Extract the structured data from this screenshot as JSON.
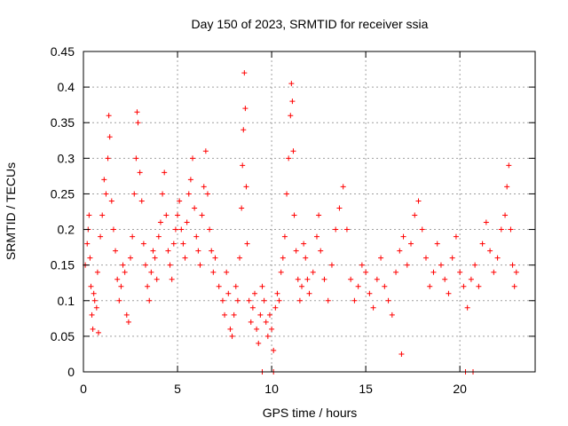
{
  "chart_data": {
    "type": "scatter",
    "title": "Day 150 of 2023, SRMTID for receiver ssia",
    "xlabel": "GPS time / hours",
    "ylabel": "SRMTID / TECUs",
    "xlim": [
      0,
      24
    ],
    "ylim": [
      0,
      0.45
    ],
    "xticks": [
      0,
      5,
      10,
      15,
      20
    ],
    "xtick_labels": [
      "0",
      "5",
      "10",
      "15",
      "20"
    ],
    "yticks": [
      0,
      0.05,
      0.1,
      0.15,
      0.2,
      0.25,
      0.3,
      0.35,
      0.4,
      0.45
    ],
    "ytick_labels": [
      "0",
      "0.05",
      "0.1",
      "0.15",
      "0.2",
      "0.25",
      "0.3",
      "0.35",
      "0.4",
      "0.45"
    ],
    "grid": true,
    "marker": "+",
    "color": "#ff0000",
    "series": [
      {
        "name": "SRMTID",
        "points": [
          [
            0.1,
            0.15
          ],
          [
            0.2,
            0.18
          ],
          [
            0.25,
            0.2
          ],
          [
            0.3,
            0.22
          ],
          [
            0.35,
            0.16
          ],
          [
            0.4,
            0.12
          ],
          [
            0.45,
            0.08
          ],
          [
            0.5,
            0.06
          ],
          [
            0.55,
            0.11
          ],
          [
            0.6,
            0.1
          ],
          [
            0.7,
            0.09
          ],
          [
            0.75,
            0.14
          ],
          [
            0.8,
            0.055
          ],
          [
            0.9,
            0.19
          ],
          [
            1.0,
            0.22
          ],
          [
            1.1,
            0.27
          ],
          [
            1.2,
            0.25
          ],
          [
            1.3,
            0.3
          ],
          [
            1.35,
            0.36
          ],
          [
            1.4,
            0.33
          ],
          [
            1.5,
            0.24
          ],
          [
            1.6,
            0.2
          ],
          [
            1.7,
            0.17
          ],
          [
            1.8,
            0.13
          ],
          [
            1.9,
            0.1
          ],
          [
            2.0,
            0.12
          ],
          [
            2.1,
            0.15
          ],
          [
            2.2,
            0.14
          ],
          [
            2.3,
            0.08
          ],
          [
            2.4,
            0.07
          ],
          [
            2.5,
            0.16
          ],
          [
            2.6,
            0.19
          ],
          [
            2.7,
            0.25
          ],
          [
            2.8,
            0.3
          ],
          [
            2.85,
            0.365
          ],
          [
            2.9,
            0.35
          ],
          [
            3.0,
            0.28
          ],
          [
            3.1,
            0.24
          ],
          [
            3.2,
            0.18
          ],
          [
            3.3,
            0.15
          ],
          [
            3.4,
            0.12
          ],
          [
            3.5,
            0.1
          ],
          [
            3.6,
            0.14
          ],
          [
            3.7,
            0.17
          ],
          [
            3.8,
            0.16
          ],
          [
            3.9,
            0.13
          ],
          [
            4.0,
            0.19
          ],
          [
            4.1,
            0.21
          ],
          [
            4.2,
            0.25
          ],
          [
            4.3,
            0.28
          ],
          [
            4.4,
            0.22
          ],
          [
            4.5,
            0.17
          ],
          [
            4.6,
            0.15
          ],
          [
            4.7,
            0.13
          ],
          [
            4.8,
            0.18
          ],
          [
            4.9,
            0.2
          ],
          [
            5.0,
            0.22
          ],
          [
            5.1,
            0.24
          ],
          [
            5.2,
            0.2
          ],
          [
            5.3,
            0.18
          ],
          [
            5.4,
            0.16
          ],
          [
            5.5,
            0.21
          ],
          [
            5.6,
            0.25
          ],
          [
            5.7,
            0.27
          ],
          [
            5.8,
            0.3
          ],
          [
            5.9,
            0.23
          ],
          [
            6.0,
            0.19
          ],
          [
            6.1,
            0.17
          ],
          [
            6.2,
            0.15
          ],
          [
            6.3,
            0.22
          ],
          [
            6.4,
            0.26
          ],
          [
            6.5,
            0.31
          ],
          [
            6.6,
            0.25
          ],
          [
            6.7,
            0.2
          ],
          [
            6.8,
            0.17
          ],
          [
            6.9,
            0.14
          ],
          [
            7.0,
            0.16
          ],
          [
            7.2,
            0.12
          ],
          [
            7.4,
            0.1
          ],
          [
            7.5,
            0.08
          ],
          [
            7.6,
            0.14
          ],
          [
            7.7,
            0.11
          ],
          [
            7.8,
            0.06
          ],
          [
            7.9,
            0.05
          ],
          [
            8.0,
            0.08
          ],
          [
            8.1,
            0.12
          ],
          [
            8.2,
            0.1
          ],
          [
            8.3,
            0.16
          ],
          [
            8.4,
            0.23
          ],
          [
            8.45,
            0.29
          ],
          [
            8.5,
            0.34
          ],
          [
            8.55,
            0.42
          ],
          [
            8.6,
            0.37
          ],
          [
            8.65,
            0.26
          ],
          [
            8.7,
            0.18
          ],
          [
            8.8,
            0.1
          ],
          [
            8.9,
            0.07
          ],
          [
            9.0,
            0.09
          ],
          [
            9.1,
            0.11
          ],
          [
            9.2,
            0.06
          ],
          [
            9.3,
            0.04
          ],
          [
            9.4,
            0.08
          ],
          [
            9.5,
            0.12
          ],
          [
            9.6,
            0.1
          ],
          [
            9.7,
            0.07
          ],
          [
            9.8,
            0.05
          ],
          [
            9.9,
            0.08
          ],
          [
            10.0,
            0.06
          ],
          [
            10.1,
            0.03
          ],
          [
            10.2,
            0.09
          ],
          [
            10.3,
            0.11
          ],
          [
            10.4,
            0.1
          ],
          [
            10.5,
            0.14
          ],
          [
            10.6,
            0.16
          ],
          [
            10.7,
            0.19
          ],
          [
            10.8,
            0.25
          ],
          [
            10.9,
            0.3
          ],
          [
            11.0,
            0.36
          ],
          [
            11.05,
            0.405
          ],
          [
            11.1,
            0.38
          ],
          [
            11.15,
            0.31
          ],
          [
            11.2,
            0.22
          ],
          [
            11.3,
            0.17
          ],
          [
            11.4,
            0.13
          ],
          [
            11.5,
            0.1
          ],
          [
            11.6,
            0.12
          ],
          [
            11.7,
            0.18
          ],
          [
            11.8,
            0.16
          ],
          [
            11.9,
            0.13
          ],
          [
            12.0,
            0.11
          ],
          [
            12.2,
            0.14
          ],
          [
            12.4,
            0.19
          ],
          [
            12.5,
            0.22
          ],
          [
            12.6,
            0.17
          ],
          [
            12.8,
            0.13
          ],
          [
            13.0,
            0.1
          ],
          [
            13.2,
            0.15
          ],
          [
            13.4,
            0.2
          ],
          [
            13.6,
            0.23
          ],
          [
            13.8,
            0.26
          ],
          [
            14.0,
            0.2
          ],
          [
            14.2,
            0.13
          ],
          [
            14.4,
            0.1
          ],
          [
            14.6,
            0.12
          ],
          [
            14.8,
            0.15
          ],
          [
            15.0,
            0.14
          ],
          [
            15.2,
            0.11
          ],
          [
            15.4,
            0.09
          ],
          [
            15.6,
            0.13
          ],
          [
            15.8,
            0.16
          ],
          [
            16.0,
            0.12
          ],
          [
            16.2,
            0.1
          ],
          [
            16.4,
            0.08
          ],
          [
            16.6,
            0.14
          ],
          [
            16.8,
            0.17
          ],
          [
            16.9,
            0.025
          ],
          [
            17.0,
            0.19
          ],
          [
            17.2,
            0.15
          ],
          [
            17.4,
            0.18
          ],
          [
            17.6,
            0.22
          ],
          [
            17.8,
            0.24
          ],
          [
            18.0,
            0.2
          ],
          [
            18.2,
            0.16
          ],
          [
            18.4,
            0.12
          ],
          [
            18.6,
            0.14
          ],
          [
            18.8,
            0.18
          ],
          [
            19.0,
            0.15
          ],
          [
            19.2,
            0.13
          ],
          [
            19.4,
            0.11
          ],
          [
            19.6,
            0.16
          ],
          [
            19.8,
            0.19
          ],
          [
            20.0,
            0.14
          ],
          [
            20.2,
            0.12
          ],
          [
            20.4,
            0.09
          ],
          [
            20.6,
            0.13
          ],
          [
            20.8,
            0.15
          ],
          [
            21.0,
            0.12
          ],
          [
            21.2,
            0.18
          ],
          [
            21.4,
            0.21
          ],
          [
            21.6,
            0.17
          ],
          [
            21.8,
            0.14
          ],
          [
            22.0,
            0.16
          ],
          [
            22.2,
            0.2
          ],
          [
            22.4,
            0.22
          ],
          [
            22.5,
            0.26
          ],
          [
            22.6,
            0.29
          ],
          [
            22.7,
            0.2
          ],
          [
            22.8,
            0.15
          ],
          [
            22.9,
            0.12
          ],
          [
            23.0,
            0.14
          ],
          [
            9.5,
            0.0
          ],
          [
            10.1,
            0.0
          ],
          [
            20.3,
            0.0
          ],
          [
            20.7,
            0.0
          ]
        ]
      }
    ]
  }
}
